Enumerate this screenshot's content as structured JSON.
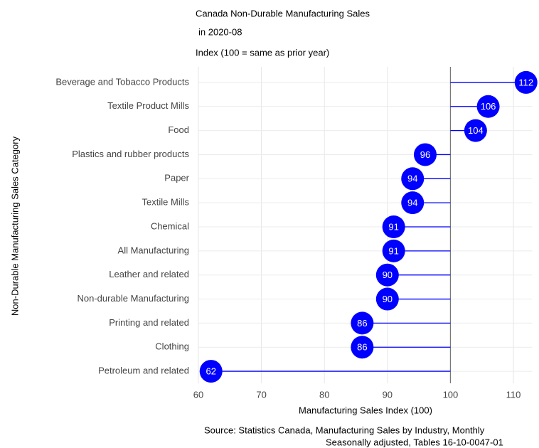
{
  "chart_data": {
    "type": "lollipop",
    "title": [
      "Canada Non-Durable Manufacturing Sales",
      "in 2020-08"
    ],
    "subtitle": "Index (100 = same as prior year)",
    "xlabel": "Manufacturing Sales Index (100)",
    "ylabel": "Non-Durable Manufacturing Sales Category",
    "caption": [
      "Source: Statistics Canada, Manufacturing Sales by Industry, Monthly",
      "Seasonally adjusted, Tables 16-10-0047-01"
    ],
    "categories": [
      "Beverage and Tobacco Products",
      "Textile Product Mills",
      "Food",
      "Plastics and rubber products",
      "Paper",
      "Textile Mills",
      "Chemical",
      "All Manufacturing",
      "Leather and related",
      "Non-durable Manufacturing",
      "Printing and related",
      "Clothing",
      "Petroleum and related"
    ],
    "values": [
      112,
      106,
      104,
      96,
      94,
      94,
      91,
      91,
      90,
      90,
      86,
      86,
      62
    ],
    "color": "#0000ff",
    "baseline": 100,
    "xlim": [
      60,
      113
    ],
    "xticks": [
      60,
      70,
      80,
      90,
      100,
      110
    ],
    "grid": true
  }
}
